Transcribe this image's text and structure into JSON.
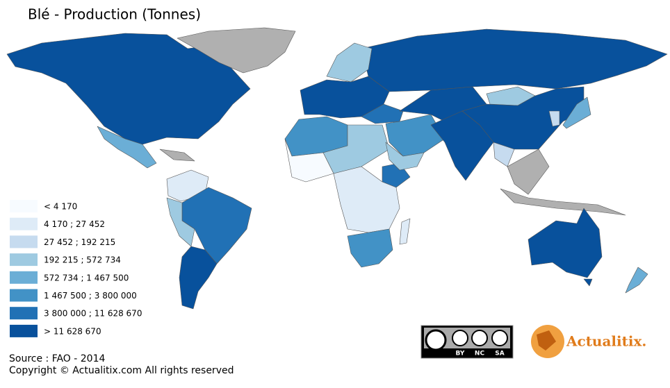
{
  "title": "Blé - Production (Tonnes)",
  "legend": [
    {
      "label": "< 4 170",
      "color": "#f7fbff"
    },
    {
      "label": "4 170 ; 27 452",
      "color": "#deebf7"
    },
    {
      "label": "27 452 ; 192 215",
      "color": "#c6dbef"
    },
    {
      "label": "192 215 ; 572 734",
      "color": "#9ecae1"
    },
    {
      "label": "572 734 ; 1 467 500",
      "color": "#6baed6"
    },
    {
      "label": "1 467 500 ; 3 800 000",
      "color": "#4292c6"
    },
    {
      "label": "3 800 000 ; 11 628 670",
      "color": "#2171b5"
    },
    {
      "label": "> 11 628 670",
      "color": "#08519c"
    }
  ],
  "source": "Source : FAO - 2014",
  "copyright": "Copyright © Actualitix.com All rights reserved",
  "license": [
    "BY",
    "NC",
    "SA"
  ],
  "brand": "Actualitix."
}
